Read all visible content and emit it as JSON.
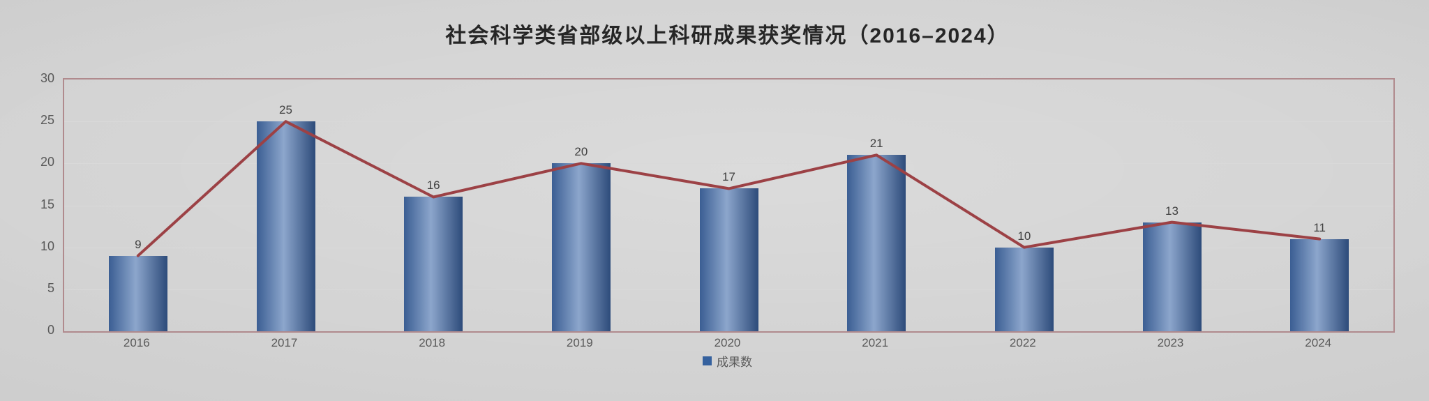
{
  "chart_data": {
    "type": "bar",
    "line_overlay": true,
    "title": "社会科学类省部级以上科研成果获奖情况（2016–2024）",
    "categories": [
      "2016",
      "2017",
      "2018",
      "2019",
      "2020",
      "2021",
      "2022",
      "2023",
      "2024"
    ],
    "values": [
      9,
      25,
      16,
      20,
      17,
      21,
      10,
      13,
      11
    ],
    "legend": [
      "成果数"
    ],
    "legend_position": "bottom",
    "xlabel": "",
    "ylabel": "",
    "ylim": [
      0,
      30
    ],
    "yticks": [
      0,
      5,
      10,
      15,
      20,
      25,
      30
    ],
    "grid": true,
    "colors": {
      "bar_edge_left": "#3b5e93",
      "bar_center": "#8ca6cc",
      "bar_edge_right": "#2d4b7a",
      "line": "#9c4145",
      "plot_border": "#b08a8d",
      "gridline": "#d9d9d9",
      "title_text": "#262626",
      "axis_text": "#595959",
      "data_label_text": "#404040",
      "legend_swatch": "#35619e",
      "background": "#cecece"
    }
  }
}
